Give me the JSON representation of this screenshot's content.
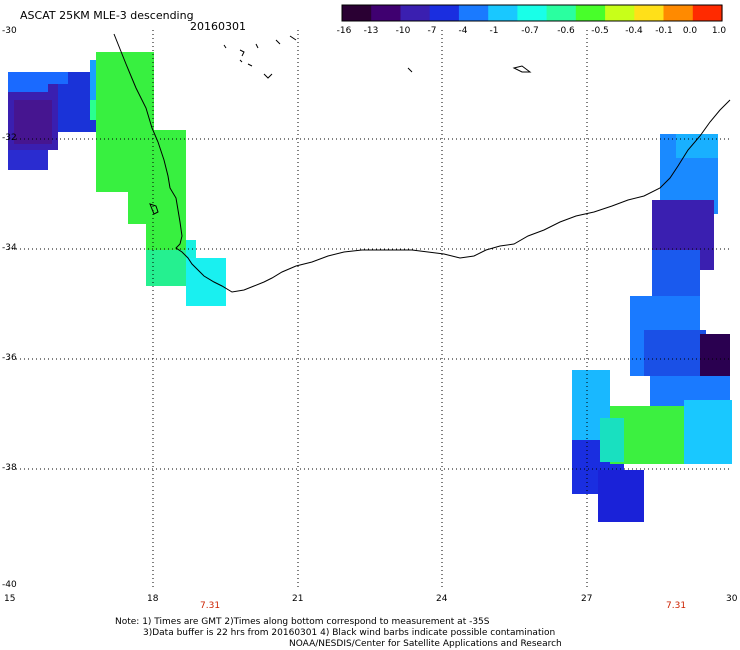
{
  "header": {
    "title": "ASCAT 25KM MLE-3 descending",
    "date": "20160301"
  },
  "colorbar": {
    "labels": [
      "-16",
      "-13",
      "-10",
      "-7",
      "-4",
      "-1",
      "-0.7",
      "-0.6",
      "-0.5",
      "-0.4",
      "-0.1",
      "0.0",
      "1.0"
    ],
    "colors": [
      "#2a0033",
      "#3f0070",
      "#3a1fb0",
      "#1a2ee0",
      "#1a7aff",
      "#19c8ff",
      "#19ffe8",
      "#2affa0",
      "#48ff2a",
      "#c8ff19",
      "#ffe019",
      "#ff8a00",
      "#ff2a00"
    ]
  },
  "axes": {
    "x_ticks": [
      "15",
      "18",
      "21",
      "24",
      "27",
      "30"
    ],
    "y_ticks": [
      "-30",
      "-32",
      "-34",
      "-36",
      "-38",
      "-40"
    ]
  },
  "time_marks": [
    "7.31",
    "7.31"
  ],
  "notes": {
    "line1": "Note: 1) Times are GMT 2)Times along bottom correspond to measurement at -35S",
    "line2": "3)Data buffer is 22 hrs from 20160301 4) Black wind barbs indicate possible contamination",
    "line3": "NOAA/NESDIS/Center for Satellite Applications and Research"
  }
}
